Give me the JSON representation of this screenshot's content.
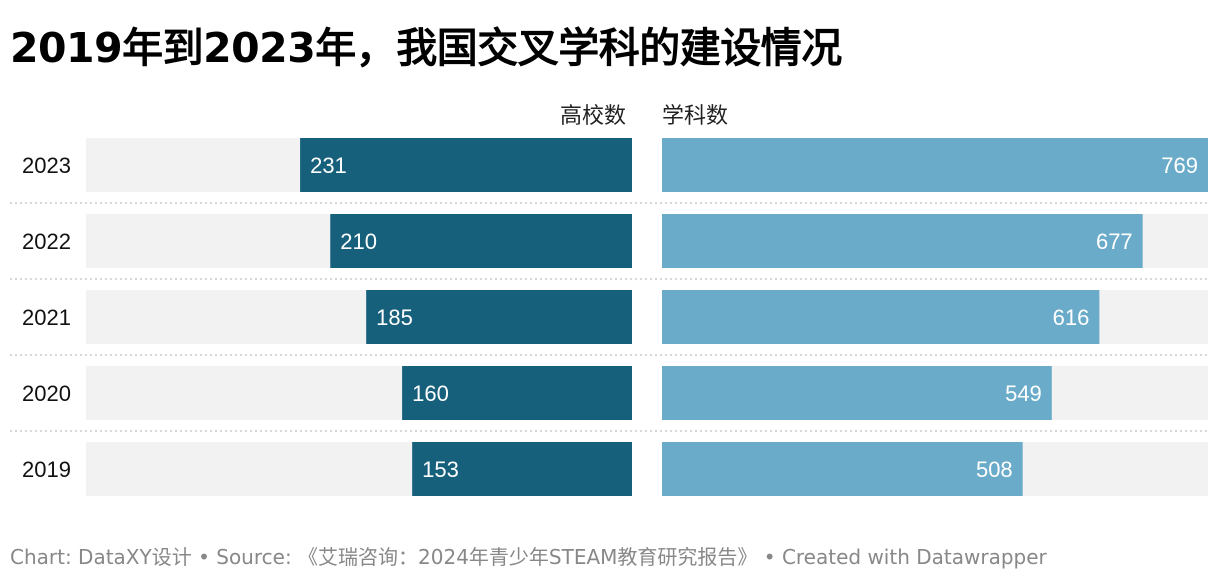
{
  "title": "2019年到2023年，我国交叉学科的建设情况",
  "col_headers": {
    "left": "高校数",
    "right": "学科数"
  },
  "footer": {
    "chart": "Chart: DataXY设计",
    "source": "Source: 《艾瑞咨询：2024年青少年STEAM教育研究报告》",
    "created": "Created with Datawrapper",
    "separator": " • "
  },
  "colors": {
    "left_bar": "#17607c",
    "right_bar": "#6aabc9",
    "track": "#f2f2f2",
    "label_text": "#ffffff",
    "divider": "#cccccc"
  },
  "chart_data": {
    "type": "bar",
    "categories": [
      "2023",
      "2022",
      "2021",
      "2020",
      "2019"
    ],
    "series": [
      {
        "name": "高校数",
        "values": [
          231,
          210,
          185,
          160,
          153
        ]
      },
      {
        "name": "学科数",
        "values": [
          769,
          677,
          616,
          549,
          508
        ]
      }
    ],
    "left_max": 380,
    "right_max": 769,
    "grid": false,
    "legend": "none"
  }
}
